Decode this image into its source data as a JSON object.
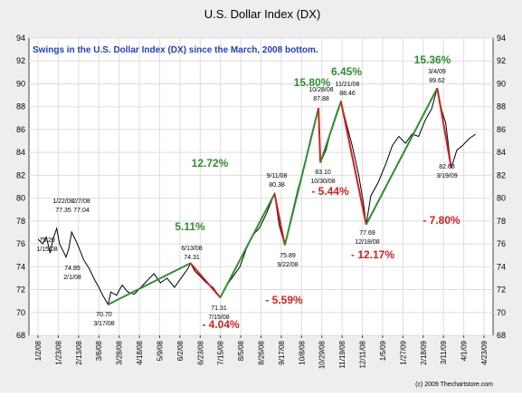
{
  "chart_data": {
    "type": "line",
    "title": "U.S. Dollar Index (DX)",
    "subtitle": "Swings in the U.S. Dollar Index (DX) since the March, 2008 bottom.",
    "copyright": "(c) 2009 Thechartstore.com",
    "xlabel": "",
    "ylabel": "",
    "ylim": [
      68,
      94
    ],
    "y_ticks": [
      68,
      70,
      72,
      74,
      76,
      78,
      80,
      82,
      84,
      86,
      88,
      90,
      92,
      94
    ],
    "x_range": [
      "2008-01-02",
      "2009-04-23"
    ],
    "x_ticks": [
      "1/2/08",
      "1/23/08",
      "2/13/08",
      "3/6/08",
      "3/28/08",
      "4/18/08",
      "5/9/08",
      "6/2/08",
      "6/23/08",
      "7/15/08",
      "8/5/08",
      "8/26/08",
      "9/17/08",
      "10/8/08",
      "10/29/08",
      "11/19/08",
      "12/11/08",
      "1/5/09",
      "1/27/09",
      "2/18/09",
      "3/11/09",
      "4/1/09",
      "4/23/09"
    ],
    "grid": true,
    "colors": {
      "price": "#000000",
      "up_swing": "#2f8f2f",
      "down_swing": "#d42020",
      "subtitle": "#1f3fbf",
      "plot_bg": "#ffffff",
      "frame_bg": "#eeeeee"
    },
    "series": [
      {
        "x": [
          "2008-01-02",
          "2008-01-07",
          "2008-01-11",
          "2008-01-15",
          "2008-01-18",
          "2008-01-22",
          "2008-01-25",
          "2008-01-30",
          "2008-02-01",
          "2008-02-04",
          "2008-02-07",
          "2008-02-12",
          "2008-02-15",
          "2008-02-20",
          "2008-02-26",
          "2008-03-03",
          "2008-03-07",
          "2008-03-12",
          "2008-03-17",
          "2008-03-20",
          "2008-03-26",
          "2008-04-01",
          "2008-04-07",
          "2008-04-14",
          "2008-04-21",
          "2008-04-28",
          "2008-05-05",
          "2008-05-12",
          "2008-05-19",
          "2008-05-27",
          "2008-06-03",
          "2008-06-10",
          "2008-06-13",
          "2008-06-18",
          "2008-06-23",
          "2008-06-30",
          "2008-07-07",
          "2008-07-15",
          "2008-07-22",
          "2008-07-29",
          "2008-08-05",
          "2008-08-12",
          "2008-08-19",
          "2008-08-26",
          "2008-09-02",
          "2008-09-11",
          "2008-09-16",
          "2008-09-22",
          "2008-09-29",
          "2008-10-06",
          "2008-10-13",
          "2008-10-20",
          "2008-10-24",
          "2008-10-28",
          "2008-10-30",
          "2008-11-05",
          "2008-11-12",
          "2008-11-17",
          "2008-11-21",
          "2008-11-26",
          "2008-12-03",
          "2008-12-10",
          "2008-12-15",
          "2008-12-18",
          "2008-12-23",
          "2008-12-31",
          "2009-01-08",
          "2009-01-15",
          "2009-01-22",
          "2009-01-29",
          "2009-02-05",
          "2009-02-12",
          "2009-02-19",
          "2009-02-26",
          "2009-03-04",
          "2009-03-09",
          "2009-03-13",
          "2009-03-19",
          "2009-03-25",
          "2009-03-31",
          "2009-04-07",
          "2009-04-14"
        ],
        "values": [
          76.4,
          76.0,
          76.6,
          75.2,
          76.4,
          77.35,
          76.0,
          75.2,
          74.85,
          75.6,
          77.04,
          76.2,
          75.6,
          74.6,
          73.8,
          72.8,
          72.2,
          71.4,
          70.7,
          71.8,
          71.5,
          72.4,
          71.8,
          71.6,
          72.2,
          72.8,
          73.4,
          72.6,
          73.0,
          72.2,
          73.0,
          73.8,
          74.31,
          73.6,
          73.2,
          72.6,
          72.2,
          71.31,
          72.4,
          73.2,
          74.0,
          75.6,
          76.8,
          77.4,
          78.6,
          80.38,
          77.6,
          75.89,
          78.4,
          80.8,
          82.8,
          85.4,
          86.6,
          87.88,
          83.1,
          84.2,
          86.4,
          87.6,
          88.46,
          86.8,
          84.6,
          82.0,
          79.6,
          77.69,
          80.2,
          81.4,
          83.0,
          84.6,
          85.4,
          84.8,
          85.6,
          85.4,
          86.8,
          87.8,
          89.62,
          87.6,
          86.6,
          82.63,
          84.2,
          84.6,
          85.2,
          85.6
        ]
      }
    ],
    "points": [
      {
        "label_value": "77.35",
        "label_date": "1/22/08"
      },
      {
        "label_value": "77.04",
        "label_date": "2/7/08"
      },
      {
        "label_value": "75.20",
        "label_date": "1/15/08"
      },
      {
        "label_value": "74.85",
        "label_date": "2/1/08"
      },
      {
        "label_value": "70.70",
        "label_date": "3/17/08"
      },
      {
        "label_value": "74.31",
        "label_date": "6/13/08"
      },
      {
        "label_value": "71.31",
        "label_date": "7/15/08"
      },
      {
        "label_value": "80.38",
        "label_date": "9/11/08"
      },
      {
        "label_value": "75.89",
        "label_date": "9/22/08"
      },
      {
        "label_value": "87.88",
        "label_date": "10/28/08"
      },
      {
        "label_value": "83.10",
        "label_date": "10/30/08"
      },
      {
        "label_value": "88.46",
        "label_date": "11/21/08"
      },
      {
        "label_value": "77.69",
        "label_date": "12/18/08"
      },
      {
        "label_value": "89.62",
        "label_date": "3/4/09"
      },
      {
        "label_value": "82.63",
        "label_date": "3/19/09"
      }
    ],
    "swings": [
      {
        "from": [
          "2008-03-17",
          70.7
        ],
        "to": [
          "2008-06-13",
          74.31
        ],
        "direction": "up",
        "percent": "5.11%"
      },
      {
        "from": [
          "2008-06-13",
          74.31
        ],
        "to": [
          "2008-07-15",
          71.31
        ],
        "direction": "down",
        "percent": "- 4.04%"
      },
      {
        "from": [
          "2008-07-15",
          71.31
        ],
        "to": [
          "2008-09-11",
          80.38
        ],
        "direction": "up",
        "percent": "12.72%"
      },
      {
        "from": [
          "2008-09-11",
          80.38
        ],
        "to": [
          "2008-09-22",
          75.89
        ],
        "direction": "down",
        "percent": "- 5.59%"
      },
      {
        "from": [
          "2008-09-22",
          75.89
        ],
        "to": [
          "2008-10-28",
          87.88
        ],
        "direction": "up",
        "percent": "15.80%"
      },
      {
        "from": [
          "2008-10-28",
          87.88
        ],
        "to": [
          "2008-10-30",
          83.1
        ],
        "direction": "down",
        "percent": "- 5.44%"
      },
      {
        "from": [
          "2008-10-30",
          83.1
        ],
        "to": [
          "2008-11-21",
          88.46
        ],
        "direction": "up",
        "percent": "6.45%"
      },
      {
        "from": [
          "2008-11-21",
          88.46
        ],
        "to": [
          "2008-12-18",
          77.69
        ],
        "direction": "down",
        "percent": "- 12.17%"
      },
      {
        "from": [
          "2008-12-18",
          77.69
        ],
        "to": [
          "2009-03-04",
          89.62
        ],
        "direction": "up",
        "percent": "15.36%"
      },
      {
        "from": [
          "2009-03-04",
          89.62
        ],
        "to": [
          "2009-03-19",
          82.63
        ],
        "direction": "down",
        "percent": "- 7.80%"
      }
    ]
  }
}
